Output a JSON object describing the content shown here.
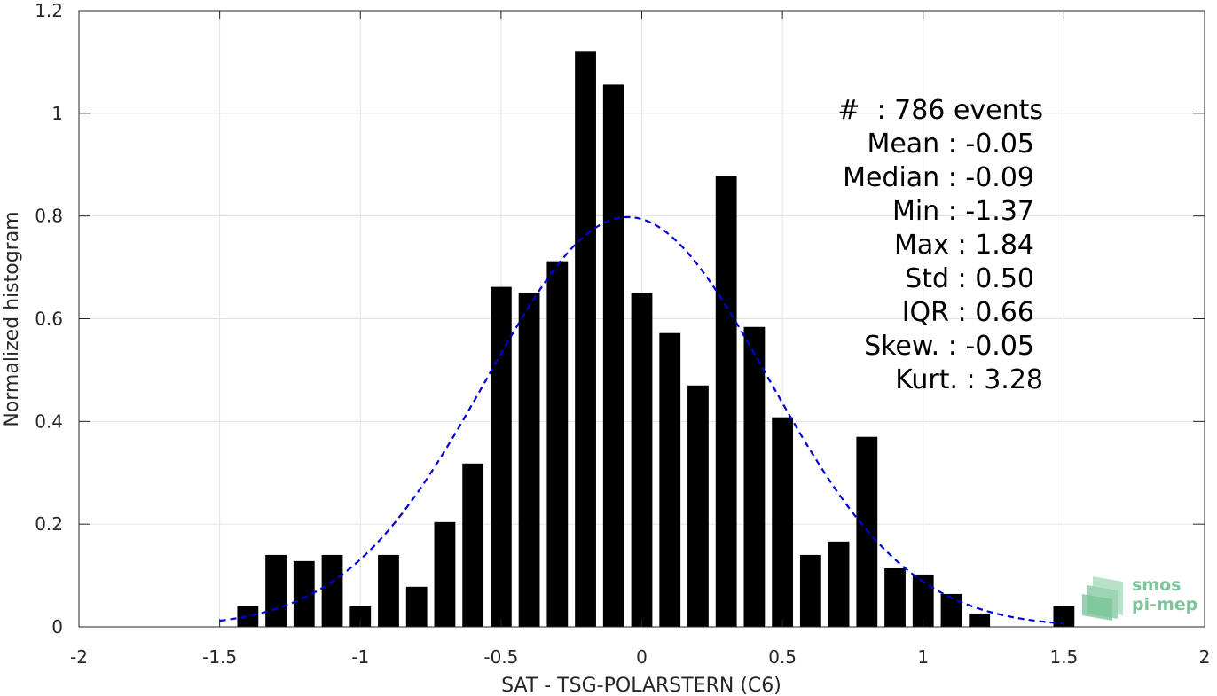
{
  "chart_data": {
    "type": "bar",
    "title": "",
    "xlabel": "SAT - TSG-POLARSTERN (C6)",
    "ylabel": "Normalized histogram",
    "xlim": [
      -2,
      2
    ],
    "ylim": [
      0,
      1.2
    ],
    "xticks": [
      -2,
      -1.5,
      -1,
      -0.5,
      0,
      0.5,
      1,
      1.5,
      2
    ],
    "xtick_labels": [
      "-2",
      "-1.5",
      "-1",
      "-0.5",
      "0",
      "0.5",
      "1",
      "1.5",
      "2"
    ],
    "yticks": [
      0,
      0.2,
      0.4,
      0.6,
      0.8,
      1,
      1.2
    ],
    "ytick_labels": [
      "0",
      "0.2",
      "0.4",
      "0.6",
      "0.8",
      "1",
      "1.2"
    ],
    "grid": true,
    "bar_color": "#000000",
    "bar_width": 0.075,
    "bars": {
      "x": [
        -1.4,
        -1.3,
        -1.2,
        -1.1,
        -1.0,
        -0.9,
        -0.8,
        -0.7,
        -0.6,
        -0.5,
        -0.4,
        -0.3,
        -0.2,
        -0.1,
        0.0,
        0.1,
        0.2,
        0.3,
        0.4,
        0.5,
        0.6,
        0.7,
        0.8,
        0.9,
        1.0,
        1.1,
        1.2,
        1.5
      ],
      "y": [
        0.04,
        0.14,
        0.128,
        0.14,
        0.04,
        0.14,
        0.078,
        0.204,
        0.318,
        0.662,
        0.65,
        0.712,
        1.12,
        1.056,
        0.65,
        0.572,
        0.47,
        0.878,
        0.584,
        0.408,
        0.14,
        0.166,
        0.37,
        0.114,
        0.102,
        0.064,
        0.026,
        0.04
      ]
    },
    "gaussian_fit": {
      "mean": -0.05,
      "std": 0.5,
      "x_range": [
        -1.5,
        1.5
      ],
      "color": "#0000dd",
      "style": "dashed"
    },
    "stats": [
      {
        "text": "#  : 786 events"
      },
      {
        "text": "Mean : -0.05"
      },
      {
        "text": "Median : -0.09"
      },
      {
        "text": "Min : -1.37"
      },
      {
        "text": "Max : 1.84"
      },
      {
        "text": "Std : 0.50"
      },
      {
        "text": "IQR : 0.66"
      },
      {
        "text": "Skew. : -0.05"
      },
      {
        "text": "Kurt. : 3.28"
      }
    ]
  },
  "logo": {
    "line1": "smos",
    "line2": "pi-mep",
    "color": "#7cc49a"
  }
}
